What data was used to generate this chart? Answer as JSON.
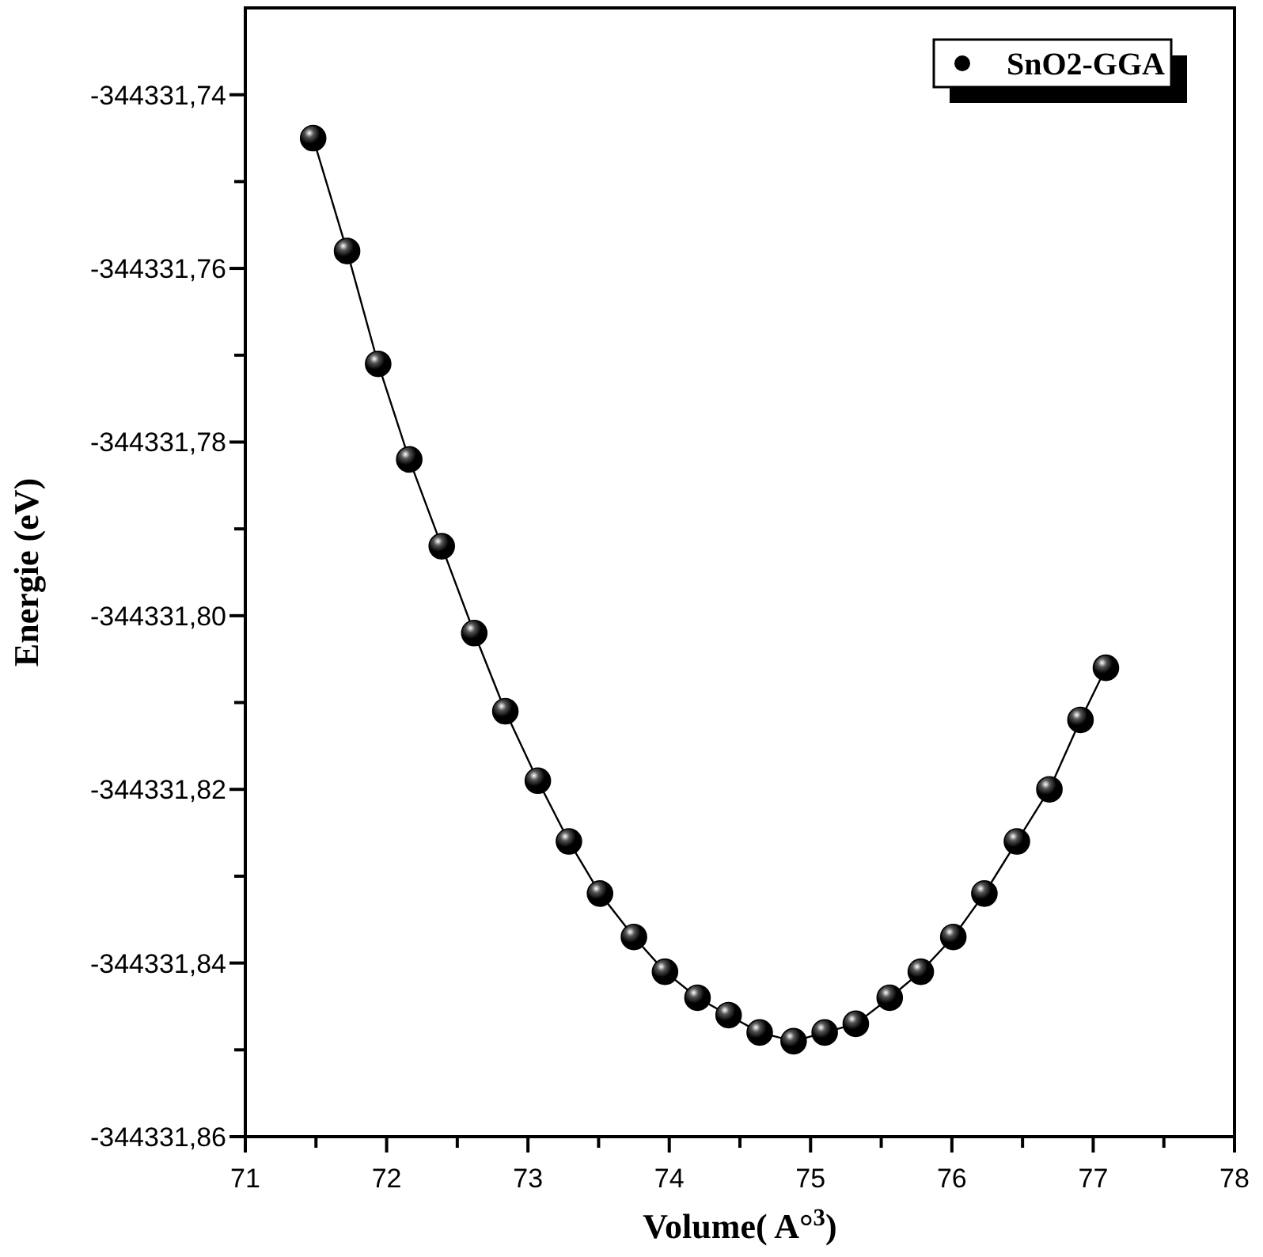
{
  "chart_data": {
    "type": "line",
    "xlabel": "Volume( A°$^{3}$)",
    "ylabel": "Energie (eV)",
    "xlim": [
      71,
      78
    ],
    "ylim": [
      -344331.86,
      -344331.73
    ],
    "xticks": [
      71,
      {
        "value": 71.5,
        "label": null
      },
      72,
      {
        "value": 72.5,
        "label": null
      },
      73,
      {
        "value": 73.5,
        "label": null
      },
      74,
      {
        "value": 74.5,
        "label": null
      },
      75,
      {
        "value": 75.5,
        "label": null
      },
      76,
      {
        "value": 76.5,
        "label": null
      },
      77,
      {
        "value": 77.5,
        "label": null
      },
      78
    ],
    "yticks": [
      {
        "value": -344331.86,
        "label": "-344331,86"
      },
      {
        "value": -344331.85,
        "label": null
      },
      {
        "value": -344331.84,
        "label": "-344331,84"
      },
      {
        "value": -344331.83,
        "label": null
      },
      {
        "value": -344331.82,
        "label": "-344331,82"
      },
      {
        "value": -344331.81,
        "label": null
      },
      {
        "value": -344331.8,
        "label": "-344331,80"
      },
      {
        "value": -344331.79,
        "label": null
      },
      {
        "value": -344331.78,
        "label": "-344331,78"
      },
      {
        "value": -344331.77,
        "label": null
      },
      {
        "value": -344331.76,
        "label": "-344331,76"
      },
      {
        "value": -344331.75,
        "label": null
      },
      {
        "value": -344331.74,
        "label": "-344331,74"
      }
    ],
    "marker": "circle",
    "legend": "top right",
    "series": [
      {
        "name": "SnO2-GGA",
        "color": "#000000",
        "x": [
          71.48,
          71.72,
          71.94,
          72.16,
          72.39,
          72.62,
          72.84,
          73.07,
          73.29,
          73.51,
          73.75,
          73.97,
          74.2,
          74.42,
          74.64,
          74.88,
          75.1,
          75.32,
          75.56,
          75.78,
          76.01,
          76.23,
          76.46,
          76.69,
          76.91,
          77.09
        ],
        "values": [
          -344331.745,
          -344331.758,
          -344331.771,
          -344331.782,
          -344331.792,
          -344331.802,
          -344331.811,
          -344331.819,
          -344331.826,
          -344331.832,
          -344331.837,
          -344331.841,
          -344331.844,
          -344331.846,
          -344331.848,
          -344331.849,
          -344331.848,
          -344331.847,
          -344331.844,
          -344331.841,
          -344331.837,
          -344331.832,
          -344331.826,
          -344331.82,
          -344331.812,
          -344331.806
        ]
      }
    ]
  }
}
